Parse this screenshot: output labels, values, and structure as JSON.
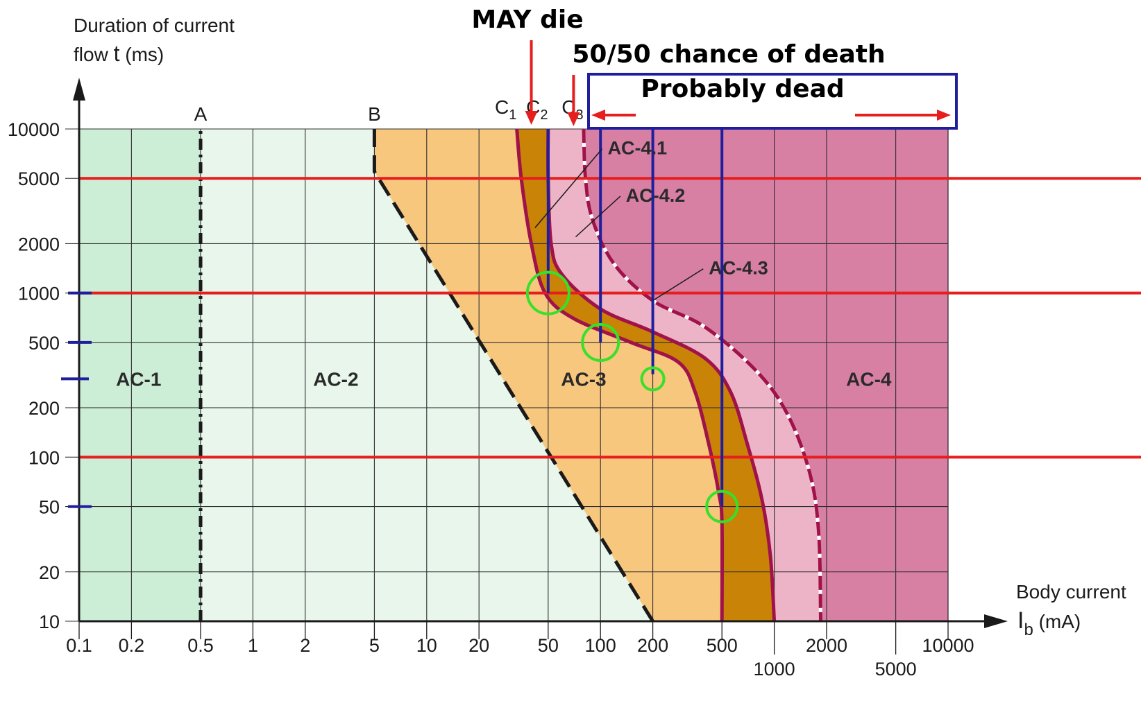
{
  "chart_data": {
    "type": "area",
    "x_scale": "log",
    "y_scale": "log",
    "xlim": [
      0.1,
      10000
    ],
    "ylim": [
      10,
      10000
    ],
    "ylabel_line1": "Duration of current",
    "ylabel_line2_prefix": "flow ",
    "ylabel_symbol": "t",
    "ylabel_unit": " (ms)",
    "xlabel_line1": "Body current",
    "xlabel_symbol": "I",
    "xlabel_sub": "b",
    "xlabel_unit": " (mA)",
    "x_ticks": [
      {
        "value": 0.1,
        "label": "0.1",
        "row": 1
      },
      {
        "value": 0.2,
        "label": "0.2",
        "row": 1
      },
      {
        "value": 0.5,
        "label": "0.5",
        "row": 1
      },
      {
        "value": 1,
        "label": "1",
        "row": 1
      },
      {
        "value": 2,
        "label": "2",
        "row": 1
      },
      {
        "value": 5,
        "label": "5",
        "row": 1
      },
      {
        "value": 10,
        "label": "10",
        "row": 1
      },
      {
        "value": 20,
        "label": "20",
        "row": 1
      },
      {
        "value": 50,
        "label": "50",
        "row": 1
      },
      {
        "value": 100,
        "label": "100",
        "row": 1
      },
      {
        "value": 200,
        "label": "200",
        "row": 1
      },
      {
        "value": 500,
        "label": "500",
        "row": 1
      },
      {
        "value": 1000,
        "label": "1000",
        "row": 2
      },
      {
        "value": 2000,
        "label": "2000",
        "row": 1
      },
      {
        "value": 5000,
        "label": "5000",
        "row": 2
      },
      {
        "value": 10000,
        "label": "10000",
        "row": 1
      }
    ],
    "y_ticks": [
      {
        "value": 10,
        "label": "10"
      },
      {
        "value": 20,
        "label": "20"
      },
      {
        "value": 50,
        "label": "50"
      },
      {
        "value": 100,
        "label": "100"
      },
      {
        "value": 200,
        "label": "200"
      },
      {
        "value": 500,
        "label": "500"
      },
      {
        "value": 1000,
        "label": "1000"
      },
      {
        "value": 2000,
        "label": "2000"
      },
      {
        "value": 5000,
        "label": "5000"
      },
      {
        "value": 10000,
        "label": "10000"
      }
    ],
    "zones": [
      {
        "name": "AC-1",
        "label_at": [
          0.22,
          300
        ]
      },
      {
        "name": "AC-2",
        "label_at": [
          3,
          300
        ]
      },
      {
        "name": "AC-3",
        "label_at": [
          80,
          300
        ]
      },
      {
        "name": "AC-4",
        "label_at": [
          3500,
          300
        ]
      }
    ],
    "curves": [
      {
        "name": "A",
        "style": "dash-dot",
        "points": [
          [
            0.5,
            10
          ],
          [
            0.5,
            10000
          ]
        ]
      },
      {
        "name": "B",
        "style": "dashed",
        "points": [
          [
            5,
            10000
          ],
          [
            5,
            5500
          ],
          [
            200,
            10
          ]
        ]
      },
      {
        "name": "C1",
        "label": "C",
        "sub": "1",
        "style": "solid",
        "points": [
          [
            33,
            10000
          ],
          [
            35,
            5000
          ],
          [
            40,
            2000
          ],
          [
            48,
            1000
          ],
          [
            70,
            700
          ],
          [
            150,
            500
          ],
          [
            280,
            380
          ],
          [
            350,
            250
          ],
          [
            420,
            120
          ],
          [
            480,
            60
          ],
          [
            500,
            40
          ],
          [
            500,
            10
          ]
        ]
      },
      {
        "name": "C2",
        "label": "C",
        "sub": "2",
        "style": "solid",
        "points": [
          [
            50,
            10000
          ],
          [
            50,
            5000
          ],
          [
            52,
            2000
          ],
          [
            60,
            1300
          ],
          [
            100,
            800
          ],
          [
            200,
            580
          ],
          [
            400,
            400
          ],
          [
            560,
            250
          ],
          [
            700,
            120
          ],
          [
            850,
            55
          ],
          [
            950,
            25
          ],
          [
            1000,
            10
          ]
        ]
      },
      {
        "name": "C3",
        "label": "C",
        "sub": "3",
        "style": "dashed-white",
        "points": [
          [
            80,
            10000
          ],
          [
            82,
            5000
          ],
          [
            90,
            2800
          ],
          [
            120,
            1500
          ],
          [
            200,
            900
          ],
          [
            400,
            620
          ],
          [
            800,
            330
          ],
          [
            1200,
            180
          ],
          [
            1600,
            80
          ],
          [
            1800,
            35
          ],
          [
            1850,
            10
          ]
        ]
      }
    ],
    "subzone_labels": [
      {
        "name": "AC-4.1",
        "label_at": [
          110,
          7000
        ],
        "pointer_to": [
          42,
          2500
        ]
      },
      {
        "name": "AC-4.2",
        "label_at": [
          140,
          3600
        ],
        "pointer_to": [
          72,
          2200
        ]
      },
      {
        "name": "AC-4.3",
        "label_at": [
          420,
          1300
        ],
        "pointer_to": [
          200,
          900
        ]
      }
    ],
    "threshold_lines": [
      {
        "color": "#e61e1e",
        "t": 5000
      },
      {
        "color": "#e61e1e",
        "t": 1000
      },
      {
        "color": "#e61e1e",
        "t": 100
      }
    ],
    "marker_lines": [
      {
        "color": "#1f1f9e",
        "x": 50,
        "y_from": 1000,
        "y_to": 10000
      },
      {
        "color": "#1f1f9e",
        "x": 100,
        "y_from": 500,
        "y_to": 10000
      },
      {
        "color": "#1f1f9e",
        "x": 200,
        "y_from": 320,
        "y_to": 10000
      },
      {
        "color": "#1f1f9e",
        "x": 500,
        "y_from": 50,
        "y_to": 10000
      }
    ],
    "circles": [
      {
        "x": 50,
        "y": 1000
      },
      {
        "x": 100,
        "y": 500
      },
      {
        "x": 200,
        "y": 300
      },
      {
        "x": 500,
        "y": 50
      }
    ],
    "axis_tick_marks": [
      {
        "t": 1000
      },
      {
        "t": 500
      },
      {
        "t": 300
      },
      {
        "t": 50
      }
    ],
    "annotations": [
      {
        "id": "may_die",
        "text": "MAY die",
        "arrow_x": 40
      },
      {
        "id": "fifty",
        "text": "50/50 chance of death",
        "arrow_x": 70
      },
      {
        "id": "probably",
        "text": "Probably dead"
      }
    ]
  },
  "colors": {
    "ac1": "#cdeed6",
    "ac2": "#e8f6eb",
    "ac3": "#f8c77e",
    "band1": "#c98306",
    "band2": "#ecb4c6",
    "ac4": "#d87fa4",
    "curve": "#a0124a",
    "red": "#e61e1e",
    "blue": "#1f1f9e",
    "green": "#37e02a",
    "grid": "#2e2e2e"
  }
}
